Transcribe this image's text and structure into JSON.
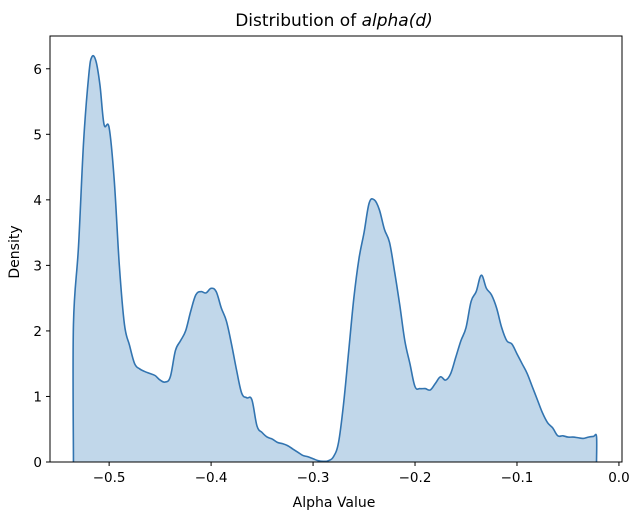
{
  "chart_data": {
    "type": "area",
    "title": "Distribution of ",
    "title_math": "alpha(d)",
    "xlabel": "Alpha Value",
    "ylabel": "Density",
    "xlim": [
      -0.558,
      0.003
    ],
    "ylim": [
      0,
      6.5
    ],
    "xticks": [
      -0.5,
      -0.4,
      -0.3,
      -0.2,
      -0.1,
      0.0
    ],
    "xtick_labels": [
      "−0.5",
      "−0.4",
      "−0.3",
      "−0.2",
      "−0.1",
      "0.0"
    ],
    "yticks": [
      0,
      1,
      2,
      3,
      4,
      5,
      6
    ],
    "ytick_labels": [
      "0",
      "1",
      "2",
      "3",
      "4",
      "5",
      "6"
    ],
    "grid": false,
    "legend": "none",
    "line_color": "#3274b0",
    "fill_color": "#c1d7ea",
    "series": [
      {
        "x": [
          -0.535,
          -0.535,
          -0.53,
          -0.525,
          -0.52,
          -0.517,
          -0.513,
          -0.509,
          -0.505,
          -0.5,
          -0.495,
          -0.49,
          -0.485,
          -0.48,
          -0.475,
          -0.47,
          -0.465,
          -0.46,
          -0.455,
          -0.45,
          -0.445,
          -0.44,
          -0.435,
          -0.43,
          -0.425,
          -0.42,
          -0.415,
          -0.41,
          -0.405,
          -0.4,
          -0.395,
          -0.39,
          -0.385,
          -0.38,
          -0.375,
          -0.37,
          -0.365,
          -0.36,
          -0.355,
          -0.35,
          -0.345,
          -0.34,
          -0.335,
          -0.33,
          -0.325,
          -0.32,
          -0.315,
          -0.31,
          -0.305,
          -0.3,
          -0.295,
          -0.29,
          -0.285,
          -0.28,
          -0.275,
          -0.27,
          -0.265,
          -0.26,
          -0.255,
          -0.25,
          -0.245,
          -0.24,
          -0.235,
          -0.23,
          -0.225,
          -0.22,
          -0.215,
          -0.21,
          -0.205,
          -0.2,
          -0.195,
          -0.19,
          -0.185,
          -0.18,
          -0.175,
          -0.17,
          -0.165,
          -0.16,
          -0.155,
          -0.15,
          -0.145,
          -0.14,
          -0.135,
          -0.13,
          -0.125,
          -0.12,
          -0.115,
          -0.11,
          -0.105,
          -0.1,
          -0.095,
          -0.09,
          -0.085,
          -0.08,
          -0.075,
          -0.07,
          -0.065,
          -0.06,
          -0.055,
          -0.05,
          -0.045,
          -0.04,
          -0.035,
          -0.03,
          -0.025,
          -0.022,
          -0.022
        ],
        "y": [
          0,
          2.1,
          3.3,
          4.9,
          5.9,
          6.18,
          6.12,
          5.75,
          5.15,
          5.1,
          4.3,
          3.0,
          2.1,
          1.78,
          1.5,
          1.42,
          1.38,
          1.35,
          1.32,
          1.25,
          1.22,
          1.3,
          1.7,
          1.85,
          2.0,
          2.3,
          2.55,
          2.6,
          2.58,
          2.65,
          2.6,
          2.35,
          2.15,
          1.8,
          1.4,
          1.05,
          0.98,
          0.95,
          0.55,
          0.45,
          0.38,
          0.35,
          0.3,
          0.28,
          0.25,
          0.2,
          0.15,
          0.1,
          0.08,
          0.05,
          0.02,
          0.01,
          0.02,
          0.08,
          0.3,
          0.9,
          1.7,
          2.5,
          3.1,
          3.5,
          3.95,
          4.0,
          3.85,
          3.55,
          3.35,
          2.9,
          2.4,
          1.85,
          1.5,
          1.15,
          1.12,
          1.12,
          1.1,
          1.2,
          1.3,
          1.25,
          1.35,
          1.6,
          1.85,
          2.05,
          2.45,
          2.6,
          2.85,
          2.65,
          2.55,
          2.35,
          2.05,
          1.85,
          1.8,
          1.65,
          1.5,
          1.35,
          1.15,
          0.95,
          0.75,
          0.6,
          0.52,
          0.4,
          0.4,
          0.38,
          0.38,
          0.37,
          0.36,
          0.38,
          0.39,
          0.39,
          0
        ]
      }
    ]
  }
}
